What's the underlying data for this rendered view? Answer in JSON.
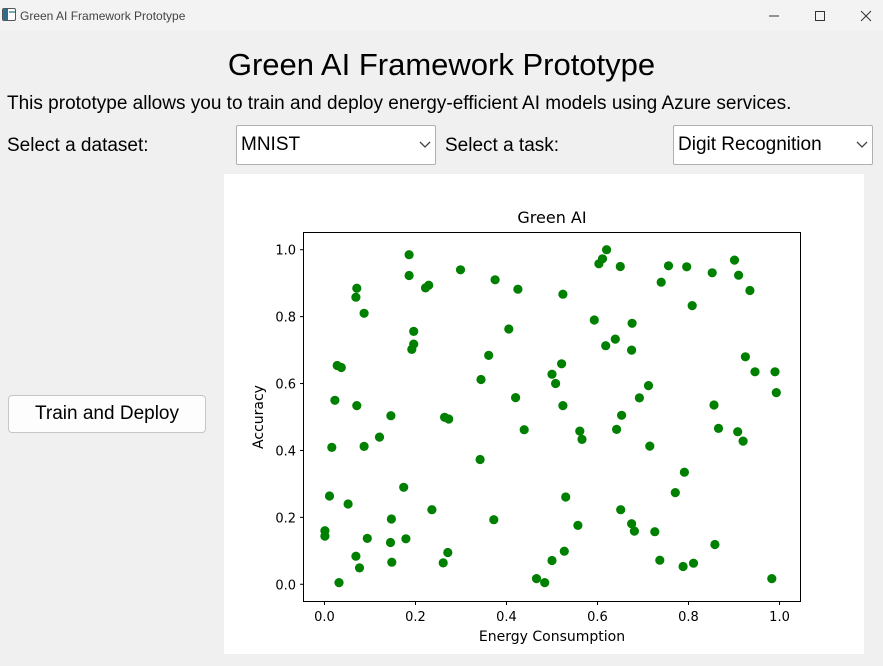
{
  "window": {
    "title": "Green AI Framework Prototype",
    "icon": "app-window-icon",
    "controls": [
      "minimize-icon",
      "maximize-icon",
      "close-icon"
    ]
  },
  "header": {
    "title": "Green AI Framework Prototype",
    "description": "This prototype allows you to train and deploy energy-efficient AI models using Azure services."
  },
  "controls": {
    "dataset_label": "Select a dataset:",
    "dataset_value": "MNIST",
    "task_label": "Select a task:",
    "task_value": "Digit Recognition",
    "train_button": "Train and Deploy"
  },
  "chart_data": {
    "type": "scatter",
    "title": "Green AI",
    "xlabel": "Energy Consumption",
    "ylabel": "Accuracy",
    "xlim": [
      -0.045,
      1.045
    ],
    "ylim": [
      -0.05,
      1.05
    ],
    "xticks": [
      0.0,
      0.2,
      0.4,
      0.6,
      0.8,
      1.0
    ],
    "xtick_labels": [
      "0.0",
      "0.2",
      "0.4",
      "0.6",
      "0.8",
      "1.0"
    ],
    "yticks": [
      0.0,
      0.2,
      0.4,
      0.6,
      0.8,
      1.0
    ],
    "ytick_labels": [
      "0.0",
      "0.2",
      "0.4",
      "0.6",
      "0.8",
      "1.0"
    ],
    "grid": false,
    "marker_color": "#008000",
    "points": [
      [
        0.071,
        0.885
      ],
      [
        0.069,
        0.858
      ],
      [
        0.087,
        0.81
      ],
      [
        0.186,
        0.985
      ],
      [
        0.186,
        0.923
      ],
      [
        0.222,
        0.886
      ],
      [
        0.229,
        0.894
      ],
      [
        0.299,
        0.94
      ],
      [
        0.375,
        0.91
      ],
      [
        0.425,
        0.882
      ],
      [
        0.524,
        0.867
      ],
      [
        0.62,
        1.0
      ],
      [
        0.611,
        0.973
      ],
      [
        0.603,
        0.958
      ],
      [
        0.65,
        0.95
      ],
      [
        0.756,
        0.952
      ],
      [
        0.796,
        0.949
      ],
      [
        0.74,
        0.903
      ],
      [
        0.808,
        0.833
      ],
      [
        0.852,
        0.931
      ],
      [
        0.901,
        0.969
      ],
      [
        0.91,
        0.924
      ],
      [
        0.935,
        0.878
      ],
      [
        0.593,
        0.79
      ],
      [
        0.676,
        0.78
      ],
      [
        0.618,
        0.713
      ],
      [
        0.639,
        0.733
      ],
      [
        0.675,
        0.7
      ],
      [
        0.405,
        0.763
      ],
      [
        0.196,
        0.756
      ],
      [
        0.196,
        0.718
      ],
      [
        0.192,
        0.702
      ],
      [
        0.028,
        0.654
      ],
      [
        0.037,
        0.648
      ],
      [
        0.361,
        0.684
      ],
      [
        0.344,
        0.612
      ],
      [
        0.521,
        0.659
      ],
      [
        0.5,
        0.628
      ],
      [
        0.508,
        0.6
      ],
      [
        0.712,
        0.594
      ],
      [
        0.692,
        0.557
      ],
      [
        0.925,
        0.68
      ],
      [
        0.946,
        0.635
      ],
      [
        0.99,
        0.635
      ],
      [
        0.993,
        0.573
      ],
      [
        0.023,
        0.55
      ],
      [
        0.071,
        0.534
      ],
      [
        0.146,
        0.504
      ],
      [
        0.264,
        0.499
      ],
      [
        0.273,
        0.494
      ],
      [
        0.42,
        0.558
      ],
      [
        0.524,
        0.534
      ],
      [
        0.653,
        0.505
      ],
      [
        0.856,
        0.536
      ],
      [
        0.016,
        0.409
      ],
      [
        0.087,
        0.412
      ],
      [
        0.121,
        0.44
      ],
      [
        0.439,
        0.462
      ],
      [
        0.561,
        0.458
      ],
      [
        0.566,
        0.433
      ],
      [
        0.642,
        0.463
      ],
      [
        0.715,
        0.413
      ],
      [
        0.866,
        0.466
      ],
      [
        0.908,
        0.456
      ],
      [
        0.92,
        0.428
      ],
      [
        0.342,
        0.373
      ],
      [
        0.174,
        0.29
      ],
      [
        0.011,
        0.264
      ],
      [
        0.052,
        0.24
      ],
      [
        0.236,
        0.223
      ],
      [
        0.53,
        0.261
      ],
      [
        0.651,
        0.223
      ],
      [
        0.771,
        0.274
      ],
      [
        0.791,
        0.335
      ],
      [
        0.147,
        0.195
      ],
      [
        0.001,
        0.16
      ],
      [
        0.001,
        0.144
      ],
      [
        0.094,
        0.137
      ],
      [
        0.145,
        0.125
      ],
      [
        0.179,
        0.136
      ],
      [
        0.372,
        0.193
      ],
      [
        0.557,
        0.176
      ],
      [
        0.675,
        0.181
      ],
      [
        0.681,
        0.159
      ],
      [
        0.726,
        0.157
      ],
      [
        0.858,
        0.119
      ],
      [
        0.069,
        0.084
      ],
      [
        0.077,
        0.049
      ],
      [
        0.148,
        0.066
      ],
      [
        0.261,
        0.064
      ],
      [
        0.271,
        0.095
      ],
      [
        0.527,
        0.099
      ],
      [
        0.5,
        0.071
      ],
      [
        0.737,
        0.072
      ],
      [
        0.788,
        0.053
      ],
      [
        0.811,
        0.063
      ],
      [
        0.983,
        0.017
      ],
      [
        0.032,
        0.005
      ],
      [
        0.466,
        0.017
      ],
      [
        0.484,
        0.005
      ]
    ]
  }
}
